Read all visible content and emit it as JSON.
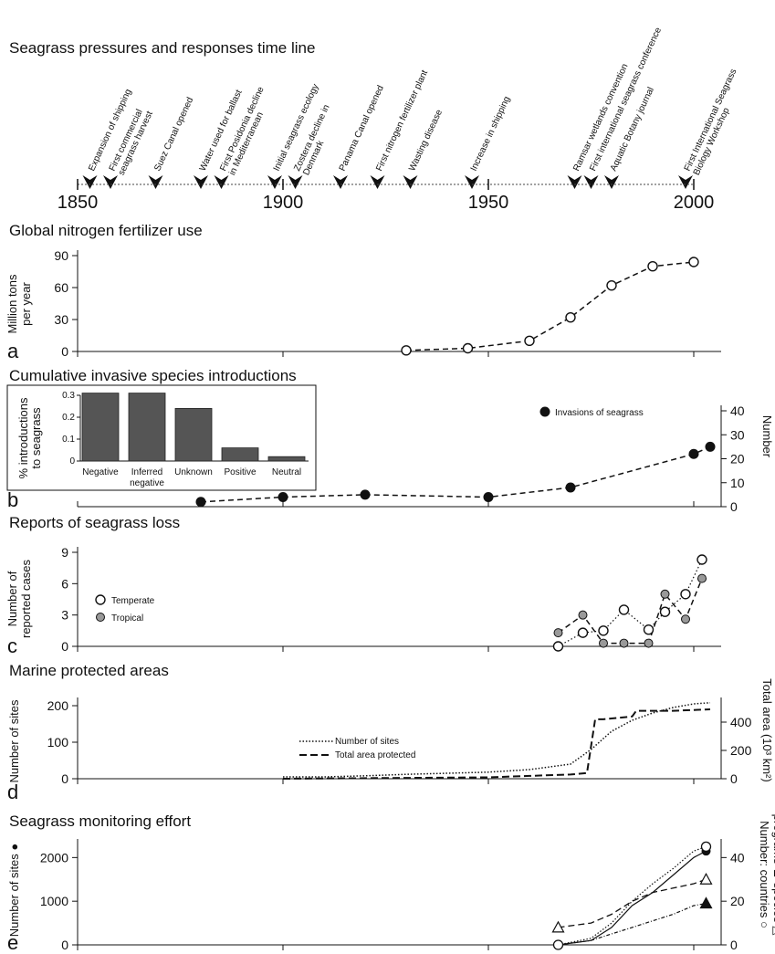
{
  "timeline": {
    "title": "Seagrass pressures and responses time line",
    "years": [
      "1850",
      "1900",
      "1950",
      "2000"
    ],
    "events": [
      {
        "year": 1853,
        "label": [
          "Expansion of shipping"
        ]
      },
      {
        "year": 1858,
        "label": [
          "First commercial",
          "seagrass harvest"
        ]
      },
      {
        "year": 1869,
        "label": [
          "Suez Canal opened"
        ]
      },
      {
        "year": 1880,
        "label": [
          "Water used for ballast"
        ]
      },
      {
        "year": 1885,
        "label": [
          "First Posidonia decline",
          "in Mediterranean"
        ]
      },
      {
        "year": 1898,
        "label": [
          "Initial seagrass ecology"
        ]
      },
      {
        "year": 1903,
        "label": [
          "Zostera decline in",
          "Denmark"
        ]
      },
      {
        "year": 1914,
        "label": [
          "Panama Canal opened"
        ]
      },
      {
        "year": 1923,
        "label": [
          "First nitrogen fertilizer plant"
        ]
      },
      {
        "year": 1931,
        "label": [
          "Wasting disease"
        ]
      },
      {
        "year": 1946,
        "label": [
          "Increase in shipping"
        ]
      },
      {
        "year": 1971,
        "label": [
          "Ramsar wetlands convention"
        ]
      },
      {
        "year": 1975,
        "label": [
          "First international seagrass conference"
        ]
      },
      {
        "year": 1980,
        "label": [
          "Aquatic Botany journal"
        ]
      },
      {
        "year": 1998,
        "label": [
          "First International Seagrass",
          "Biology Workshop"
        ]
      }
    ]
  },
  "panels": {
    "a": {
      "letter": "a",
      "title": "Global nitrogen fertilizer use",
      "ylabel": [
        "Million tons",
        "per year"
      ],
      "yticks": [
        "0",
        "30",
        "60",
        "90"
      ]
    },
    "b": {
      "letter": "b",
      "title": "Cumulative invasive species introductions",
      "right_label": "Number",
      "yticks": [
        "0",
        "10",
        "20",
        "30",
        "40"
      ],
      "legend": "Invasions of seagrass",
      "inset": {
        "ylabel": [
          "% introductions",
          "to seagrass"
        ],
        "yticks": [
          "0",
          "0.1",
          "0.2",
          "0.3"
        ],
        "categories": [
          [
            "Negative"
          ],
          [
            "Inferred",
            "negative"
          ],
          [
            "Unknown"
          ],
          [
            "Positive"
          ],
          [
            "Neutral"
          ]
        ]
      }
    },
    "c": {
      "letter": "c",
      "title": "Reports of seagrass loss",
      "ylabel": [
        "Number of",
        "reported cases"
      ],
      "yticks": [
        "0",
        "3",
        "6",
        "9"
      ],
      "legend": [
        "Temperate",
        "Tropical"
      ]
    },
    "d": {
      "letter": "d",
      "title": "Marine protected areas",
      "ylabel": "Number of sites",
      "right_label": "Total area (10³ km²)",
      "yticks": [
        "0",
        "100",
        "200"
      ],
      "yticks_right": [
        "0",
        "200",
        "400"
      ],
      "legend": [
        "Number of sites",
        "Total area protected"
      ]
    },
    "e": {
      "letter": "e",
      "title": "Seagrass monitoring effort",
      "ylabel": "Number of sites ●",
      "right_label": [
        "Number: countries ○",
        "programs ▲ species △"
      ],
      "yticks": [
        "0",
        "1000",
        "2000"
      ],
      "yticks_right": [
        "0",
        "20",
        "40"
      ]
    }
  },
  "chart_data": [
    {
      "type": "line",
      "panel": "a",
      "title": "Global nitrogen fertilizer use",
      "ylabel": "Million tons per year",
      "xlim": [
        1850,
        2005
      ],
      "ylim": [
        0,
        90
      ],
      "series": [
        {
          "x": [
            1930,
            1945,
            1960,
            1970,
            1980,
            1990,
            2000
          ],
          "values": [
            1,
            3,
            10,
            32,
            62,
            80,
            84
          ]
        }
      ]
    },
    {
      "type": "line",
      "panel": "b",
      "title": "Cumulative invasive species introductions",
      "ylabel": "Number",
      "xlim": [
        1850,
        2005
      ],
      "ylim": [
        0,
        40
      ],
      "series": [
        {
          "name": "Invasions of seagrass",
          "x": [
            1880,
            1900,
            1920,
            1950,
            1970,
            2000,
            2004
          ],
          "values": [
            2,
            4,
            5,
            4,
            8,
            22,
            25
          ]
        }
      ]
    },
    {
      "type": "bar",
      "panel": "b-inset",
      "ylabel": "% introductions to seagrass",
      "ylim": [
        0,
        0.3
      ],
      "categories": [
        "Negative",
        "Inferred negative",
        "Unknown",
        "Positive",
        "Neutral"
      ],
      "values": [
        0.31,
        0.31,
        0.24,
        0.06,
        0.02
      ]
    },
    {
      "type": "line",
      "panel": "c",
      "title": "Reports of seagrass loss",
      "ylabel": "Number of reported cases",
      "xlim": [
        1850,
        2005
      ],
      "ylim": [
        0,
        9
      ],
      "series": [
        {
          "name": "Temperate",
          "x": [
            1967,
            1973,
            1978,
            1983,
            1989,
            1993,
            1998,
            2002
          ],
          "values": [
            0,
            1.3,
            1.5,
            3.5,
            1.6,
            3.3,
            5,
            8.3
          ]
        },
        {
          "name": "Tropical",
          "x": [
            1967,
            1973,
            1978,
            1983,
            1989,
            1993,
            1998,
            2002
          ],
          "values": [
            1.3,
            3,
            0.3,
            0.3,
            0.3,
            5,
            2.6,
            6.5
          ]
        }
      ]
    },
    {
      "type": "line",
      "panel": "d",
      "title": "Marine protected areas",
      "ylabel": "Number of sites",
      "xlim": [
        1850,
        2005
      ],
      "ylim": [
        0,
        250
      ],
      "series": [
        {
          "name": "Number of sites",
          "axis": "left",
          "x": [
            1900,
            1910,
            1920,
            1930,
            1940,
            1950,
            1960,
            1970,
            1975,
            1980,
            1985,
            1990,
            1995,
            2000,
            2004
          ],
          "values": [
            5,
            5,
            8,
            12,
            15,
            18,
            25,
            40,
            80,
            130,
            160,
            180,
            195,
            205,
            208
          ]
        },
        {
          "name": "Total area protected",
          "axis": "right",
          "ylim_right": [
            0,
            500
          ],
          "x": [
            1900,
            1950,
            1960,
            1970,
            1974,
            1976,
            1978,
            1985,
            1986,
            1995,
            2004
          ],
          "values": [
            0,
            10,
            20,
            30,
            40,
            420,
            420,
            440,
            480,
            480,
            490
          ]
        }
      ]
    },
    {
      "type": "line",
      "panel": "e",
      "title": "Seagrass monitoring effort",
      "ylabel": "Number of sites",
      "xlim": [
        1850,
        2005
      ],
      "ylim": [
        0,
        2300
      ],
      "series": [
        {
          "name": "sites",
          "marker": "filled-circle",
          "axis": "left",
          "x": [
            1967,
            1975,
            1980,
            1985,
            1990,
            1995,
            2000,
            2003
          ],
          "values": [
            0,
            100,
            400,
            900,
            1200,
            1600,
            2000,
            2150
          ]
        },
        {
          "name": "countries",
          "marker": "open-circle",
          "axis": "right",
          "ylim_right": [
            0,
            46
          ],
          "x": [
            1967,
            1975,
            1980,
            1985,
            1990,
            1995,
            2000,
            2003
          ],
          "values": [
            0,
            3,
            10,
            20,
            28,
            35,
            43,
            45
          ]
        },
        {
          "name": "programs",
          "marker": "filled-triangle",
          "axis": "right",
          "x": [
            1967,
            1975,
            1980,
            1985,
            1990,
            1995,
            2000,
            2003
          ],
          "values": [
            0,
            2,
            5,
            8,
            11,
            14,
            18,
            19
          ]
        },
        {
          "name": "species",
          "marker": "open-triangle",
          "axis": "right",
          "x": [
            1967,
            1975,
            1980,
            1985,
            1990,
            1995,
            2000,
            2003
          ],
          "values": [
            8,
            10,
            14,
            20,
            24,
            26,
            28,
            30
          ]
        }
      ]
    }
  ]
}
